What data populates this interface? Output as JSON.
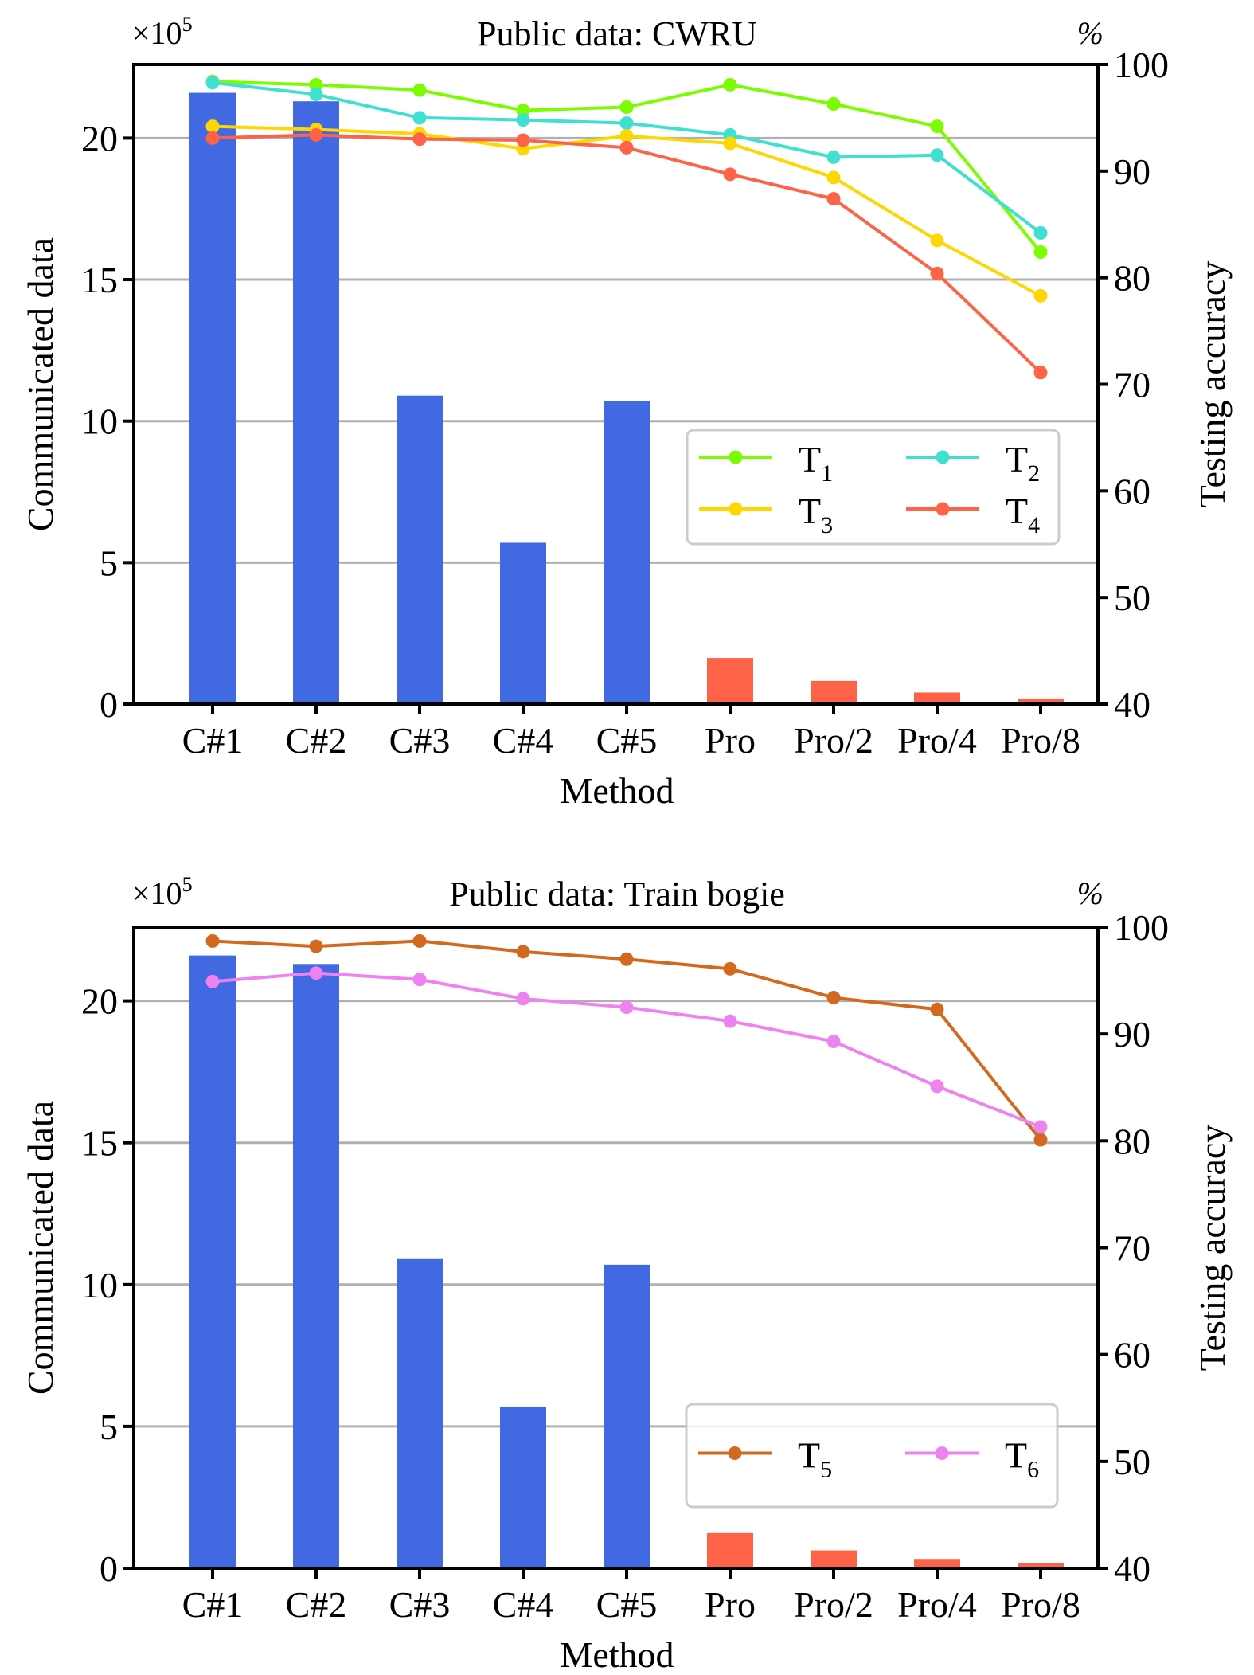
{
  "chart_data": [
    {
      "type": "bar+line",
      "title": "Public data: CWRU",
      "xlabel": "Method",
      "ylabel_left": "Communicated data",
      "ylabel_right": "Testing accuracy",
      "left_multiplier": "×10",
      "left_multiplier_exp": "5",
      "right_unit": "%",
      "categories": [
        "C#1",
        "C#2",
        "C#3",
        "C#4",
        "C#5",
        "Pro",
        "Pro/2",
        "Pro/4",
        "Pro/8"
      ],
      "ylim_left": [
        0,
        22.6
      ],
      "ylim_right": [
        40,
        100
      ],
      "yticks_left": [
        0,
        5,
        10,
        15,
        20
      ],
      "yticks_right": [
        40,
        50,
        60,
        70,
        80,
        90,
        100
      ],
      "grid": true,
      "bars": {
        "name": "Communicated data",
        "values": [
          21.6,
          21.3,
          10.9,
          5.7,
          10.7,
          1.63,
          0.82,
          0.41,
          0.2
        ],
        "colors": [
          "#4169E1",
          "#4169E1",
          "#4169E1",
          "#4169E1",
          "#4169E1",
          "#FF6347",
          "#FF6347",
          "#FF6347",
          "#FF6347"
        ]
      },
      "series": [
        {
          "name": "T",
          "sub": "1",
          "color": "#7CFC00",
          "values": [
            98.4,
            98.1,
            97.6,
            95.7,
            96.0,
            98.1,
            96.3,
            94.2,
            82.4
          ]
        },
        {
          "name": "T",
          "sub": "2",
          "color": "#40E0D0",
          "values": [
            98.3,
            97.2,
            95.0,
            94.8,
            94.5,
            93.4,
            91.3,
            91.5,
            84.2
          ]
        },
        {
          "name": "T",
          "sub": "3",
          "color": "#FFD700",
          "values": [
            94.2,
            93.9,
            93.5,
            92.1,
            93.3,
            92.6,
            89.4,
            83.5,
            78.3
          ]
        },
        {
          "name": "T",
          "sub": "4",
          "color": "#FF6347",
          "values": [
            93.1,
            93.4,
            93.0,
            92.9,
            92.2,
            89.7,
            87.4,
            80.4,
            71.1
          ]
        }
      ],
      "legend": {
        "placement": "center-right",
        "columns": 2,
        "order": [
          0,
          2,
          1,
          3
        ]
      }
    },
    {
      "type": "bar+line",
      "title": "Public data: Train bogie",
      "xlabel": "Method",
      "ylabel_left": "Communicated data",
      "ylabel_right": "Testing accuracy",
      "left_multiplier": "×10",
      "left_multiplier_exp": "5",
      "right_unit": "%",
      "categories": [
        "C#1",
        "C#2",
        "C#3",
        "C#4",
        "C#5",
        "Pro",
        "Pro/2",
        "Pro/4",
        "Pro/8"
      ],
      "ylim_left": [
        0,
        22.6
      ],
      "ylim_right": [
        40,
        100
      ],
      "yticks_left": [
        0,
        5,
        10,
        15,
        20
      ],
      "yticks_right": [
        40,
        50,
        60,
        70,
        80,
        90,
        100
      ],
      "grid": true,
      "bars": {
        "name": "Communicated data",
        "values": [
          21.6,
          21.3,
          10.9,
          5.7,
          10.7,
          1.24,
          0.63,
          0.33,
          0.18
        ],
        "colors": [
          "#4169E1",
          "#4169E1",
          "#4169E1",
          "#4169E1",
          "#4169E1",
          "#FF6347",
          "#FF6347",
          "#FF6347",
          "#FF6347"
        ]
      },
      "series": [
        {
          "name": "T",
          "sub": "5",
          "color": "#D2691E",
          "values": [
            98.7,
            98.2,
            98.7,
            97.7,
            97.0,
            96.1,
            93.4,
            92.3,
            80.1
          ]
        },
        {
          "name": "T",
          "sub": "6",
          "color": "#EE82EE",
          "values": [
            94.9,
            95.7,
            95.1,
            93.3,
            92.5,
            91.2,
            89.3,
            85.1,
            81.3
          ]
        }
      ],
      "legend": {
        "placement": "center-right",
        "columns": 2,
        "order": [
          0,
          1
        ]
      }
    }
  ]
}
